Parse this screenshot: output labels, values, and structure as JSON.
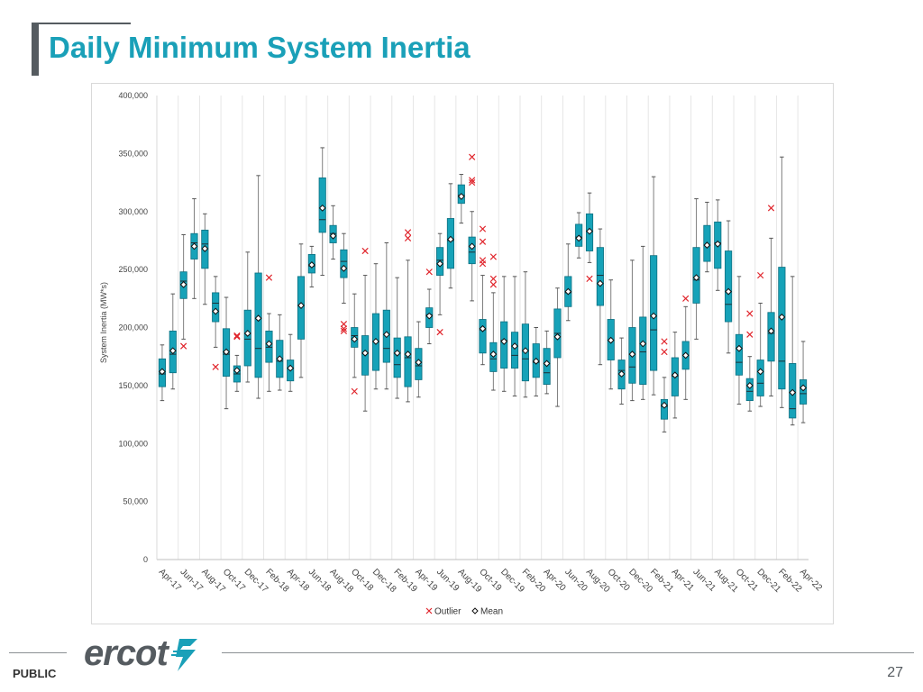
{
  "page": {
    "title": "Daily Minimum System Inertia",
    "classification": "PUBLIC",
    "page_number": "27",
    "logo_text": "ercot",
    "colors": {
      "title": "#1aa0b8",
      "box_fill": "#16a2b8",
      "box_stroke": "#0c6f80",
      "outlier": "#e0242b",
      "dark_gray": "#555b60"
    }
  },
  "chart_data": {
    "type": "box",
    "ylabel": "System Inertia (MW*s)",
    "xlabel": "",
    "ylim": [
      0,
      400000
    ],
    "yticks": [
      0,
      50000,
      100000,
      150000,
      200000,
      250000,
      300000,
      350000,
      400000
    ],
    "ytick_labels": [
      "0",
      "50,000",
      "100,000",
      "150,000",
      "200,000",
      "250,000",
      "300,000",
      "350,000",
      "400,000"
    ],
    "grid": "vertical",
    "legend": {
      "placement": "bottom",
      "entries": [
        "Outlier",
        "Mean"
      ]
    },
    "xtick_labels": [
      "Apr-17",
      "Jun-17",
      "Aug-17",
      "Oct-17",
      "Dec-17",
      "Feb-18",
      "Apr-18",
      "Jun-18",
      "Aug-18",
      "Oct-18",
      "Dec-18",
      "Feb-19",
      "Apr-19",
      "Jun-19",
      "Aug-19",
      "Oct-19",
      "Dec-19",
      "Feb-20",
      "Apr-20",
      "Jun-20",
      "Aug-20",
      "Oct-20",
      "Dec-20",
      "Feb-21",
      "Apr-21",
      "Jun-21",
      "Aug-21",
      "Oct-21",
      "Dec-21",
      "Feb-22",
      "Apr-22"
    ],
    "categories": [
      "Apr-17",
      "May-17",
      "Jun-17",
      "Jul-17",
      "Aug-17",
      "Sep-17",
      "Oct-17",
      "Nov-17",
      "Dec-17",
      "Jan-18",
      "Feb-18",
      "Mar-18",
      "Apr-18",
      "May-18",
      "Jun-18",
      "Jul-18",
      "Aug-18",
      "Sep-18",
      "Oct-18",
      "Nov-18",
      "Dec-18",
      "Jan-19",
      "Feb-19",
      "Mar-19",
      "Apr-19",
      "May-19",
      "Jun-19",
      "Jul-19",
      "Aug-19",
      "Sep-19",
      "Oct-19",
      "Nov-19",
      "Dec-19",
      "Jan-20",
      "Feb-20",
      "Mar-20",
      "Apr-20",
      "May-20",
      "Jun-20",
      "Jul-20",
      "Aug-20",
      "Sep-20",
      "Oct-20",
      "Nov-20",
      "Dec-20",
      "Jan-21",
      "Feb-21",
      "Mar-21",
      "Apr-21",
      "May-21",
      "Jun-21",
      "Jul-21",
      "Aug-21",
      "Sep-21",
      "Oct-21",
      "Nov-21",
      "Dec-21",
      "Jan-22",
      "Feb-22",
      "Mar-22",
      "Apr-22"
    ],
    "boxes": [
      {
        "min": 137000,
        "q1": 149000,
        "median": 160000,
        "q3": 173000,
        "max": 185000,
        "mean": 162000,
        "outliers": []
      },
      {
        "min": 147000,
        "q1": 161000,
        "median": 177000,
        "q3": 197000,
        "max": 229000,
        "mean": 180000,
        "outliers": []
      },
      {
        "min": 190000,
        "q1": 225000,
        "median": 240000,
        "q3": 248000,
        "max": 280000,
        "mean": 237000,
        "outliers": [
          184000
        ]
      },
      {
        "min": 225000,
        "q1": 259000,
        "median": 273000,
        "q3": 281000,
        "max": 311000,
        "mean": 270000,
        "outliers": []
      },
      {
        "min": 220000,
        "q1": 251000,
        "median": 272000,
        "q3": 284000,
        "max": 298000,
        "mean": 268000,
        "outliers": []
      },
      {
        "min": 183000,
        "q1": 205000,
        "median": 221000,
        "q3": 230000,
        "max": 244000,
        "mean": 214000,
        "outliers": [
          166000
        ]
      },
      {
        "min": 130000,
        "q1": 158000,
        "median": 177000,
        "q3": 199000,
        "max": 226000,
        "mean": 179000,
        "outliers": []
      },
      {
        "min": 145000,
        "q1": 153000,
        "median": 160000,
        "q3": 167000,
        "max": 176000,
        "mean": 163000,
        "outliers": [
          192000,
          193000
        ]
      },
      {
        "min": 153000,
        "q1": 167000,
        "median": 190000,
        "q3": 215000,
        "max": 265000,
        "mean": 195000,
        "outliers": []
      },
      {
        "min": 139000,
        "q1": 157000,
        "median": 182000,
        "q3": 247000,
        "max": 331000,
        "mean": 208000,
        "outliers": []
      },
      {
        "min": 145000,
        "q1": 170000,
        "median": 183000,
        "q3": 197000,
        "max": 212000,
        "mean": 186000,
        "outliers": [
          243000
        ]
      },
      {
        "min": 146000,
        "q1": 157000,
        "median": 171000,
        "q3": 189000,
        "max": 211000,
        "mean": 173000,
        "outliers": []
      },
      {
        "min": 145000,
        "q1": 154000,
        "median": 165000,
        "q3": 172000,
        "max": 194000,
        "mean": 165000,
        "outliers": []
      },
      {
        "min": 157000,
        "q1": 190000,
        "median": 219000,
        "q3": 244000,
        "max": 272000,
        "mean": 219000,
        "outliers": []
      },
      {
        "min": 235000,
        "q1": 247000,
        "median": 253000,
        "q3": 263000,
        "max": 270000,
        "mean": 254000,
        "outliers": []
      },
      {
        "min": 245000,
        "q1": 282000,
        "median": 293000,
        "q3": 329000,
        "max": 355000,
        "mean": 303000,
        "outliers": []
      },
      {
        "min": 259000,
        "q1": 273000,
        "median": 281000,
        "q3": 288000,
        "max": 305000,
        "mean": 279000,
        "outliers": []
      },
      {
        "min": 221000,
        "q1": 243000,
        "median": 257000,
        "q3": 267000,
        "max": 281000,
        "mean": 251000,
        "outliers": [
          203000,
          199000,
          197000
        ]
      },
      {
        "min": 157000,
        "q1": 183000,
        "median": 193000,
        "q3": 200000,
        "max": 229000,
        "mean": 190000,
        "outliers": [
          145000
        ]
      },
      {
        "min": 128000,
        "q1": 159000,
        "median": 178000,
        "q3": 193000,
        "max": 245000,
        "mean": 178000,
        "outliers": [
          266000
        ]
      },
      {
        "min": 147000,
        "q1": 163000,
        "median": 188000,
        "q3": 212000,
        "max": 255000,
        "mean": 188000,
        "outliers": []
      },
      {
        "min": 147000,
        "q1": 170000,
        "median": 182000,
        "q3": 215000,
        "max": 273000,
        "mean": 194000,
        "outliers": []
      },
      {
        "min": 139000,
        "q1": 157000,
        "median": 168000,
        "q3": 191000,
        "max": 243000,
        "mean": 178000,
        "outliers": []
      },
      {
        "min": 136000,
        "q1": 149000,
        "median": 174000,
        "q3": 192000,
        "max": 258000,
        "mean": 177000,
        "outliers": [
          282000,
          277000
        ]
      },
      {
        "min": 140000,
        "q1": 155000,
        "median": 167000,
        "q3": 182000,
        "max": 205000,
        "mean": 170000,
        "outliers": []
      },
      {
        "min": 186000,
        "q1": 200000,
        "median": 211000,
        "q3": 217000,
        "max": 233000,
        "mean": 210000,
        "outliers": [
          248000
        ]
      },
      {
        "min": 211000,
        "q1": 245000,
        "median": 258000,
        "q3": 269000,
        "max": 281000,
        "mean": 255000,
        "outliers": [
          196000
        ]
      },
      {
        "min": 234000,
        "q1": 251000,
        "median": 275000,
        "q3": 294000,
        "max": 324000,
        "mean": 276000,
        "outliers": []
      },
      {
        "min": 290000,
        "q1": 307000,
        "median": 314000,
        "q3": 323000,
        "max": 332000,
        "mean": 313000,
        "outliers": []
      },
      {
        "min": 223000,
        "q1": 255000,
        "median": 265000,
        "q3": 278000,
        "max": 300000,
        "mean": 270000,
        "outliers": [
          347000,
          327000,
          325000
        ]
      },
      {
        "min": 168000,
        "q1": 178000,
        "median": 198000,
        "q3": 207000,
        "max": 245000,
        "mean": 199000,
        "outliers": [
          285000,
          274000,
          258000,
          255000
        ]
      },
      {
        "min": 146000,
        "q1": 162000,
        "median": 173000,
        "q3": 187000,
        "max": 230000,
        "mean": 177000,
        "outliers": [
          261000,
          242000,
          237000
        ]
      },
      {
        "min": 145000,
        "q1": 165000,
        "median": 189000,
        "q3": 205000,
        "max": 244000,
        "mean": 188000,
        "outliers": []
      },
      {
        "min": 141000,
        "q1": 165000,
        "median": 176000,
        "q3": 196000,
        "max": 244000,
        "mean": 184000,
        "outliers": []
      },
      {
        "min": 140000,
        "q1": 154000,
        "median": 173000,
        "q3": 203000,
        "max": 248000,
        "mean": 180000,
        "outliers": []
      },
      {
        "min": 141000,
        "q1": 157000,
        "median": 170000,
        "q3": 186000,
        "max": 200000,
        "mean": 171000,
        "outliers": []
      },
      {
        "min": 143000,
        "q1": 151000,
        "median": 161000,
        "q3": 182000,
        "max": 197000,
        "mean": 169000,
        "outliers": []
      },
      {
        "min": 132000,
        "q1": 174000,
        "median": 195000,
        "q3": 216000,
        "max": 234000,
        "mean": 192000,
        "outliers": []
      },
      {
        "min": 206000,
        "q1": 218000,
        "median": 230000,
        "q3": 244000,
        "max": 272000,
        "mean": 231000,
        "outliers": []
      },
      {
        "min": 260000,
        "q1": 270000,
        "median": 278000,
        "q3": 289000,
        "max": 299000,
        "mean": 277000,
        "outliers": []
      },
      {
        "min": 256000,
        "q1": 266000,
        "median": 283000,
        "q3": 298000,
        "max": 316000,
        "mean": 283000,
        "outliers": [
          242000
        ]
      },
      {
        "min": 168000,
        "q1": 219000,
        "median": 245000,
        "q3": 269000,
        "max": 285000,
        "mean": 238000,
        "outliers": []
      },
      {
        "min": 147000,
        "q1": 172000,
        "median": 189000,
        "q3": 207000,
        "max": 241000,
        "mean": 189000,
        "outliers": []
      },
      {
        "min": 134000,
        "q1": 147000,
        "median": 163000,
        "q3": 172000,
        "max": 191000,
        "mean": 160000,
        "outliers": []
      },
      {
        "min": 137000,
        "q1": 152000,
        "median": 166000,
        "q3": 200000,
        "max": 258000,
        "mean": 177000,
        "outliers": []
      },
      {
        "min": 138000,
        "q1": 151000,
        "median": 179000,
        "q3": 209000,
        "max": 270000,
        "mean": 186000,
        "outliers": []
      },
      {
        "min": 142000,
        "q1": 163000,
        "median": 198000,
        "q3": 262000,
        "max": 330000,
        "mean": 210000,
        "outliers": []
      },
      {
        "min": 110000,
        "q1": 121000,
        "median": 132000,
        "q3": 138000,
        "max": 157000,
        "mean": 133000,
        "outliers": [
          188000,
          179000
        ]
      },
      {
        "min": 122000,
        "q1": 141000,
        "median": 158000,
        "q3": 174000,
        "max": 196000,
        "mean": 159000,
        "outliers": []
      },
      {
        "min": 138000,
        "q1": 164000,
        "median": 176000,
        "q3": 188000,
        "max": 218000,
        "mean": 176000,
        "outliers": [
          225000
        ]
      },
      {
        "min": 190000,
        "q1": 221000,
        "median": 241000,
        "q3": 269000,
        "max": 311000,
        "mean": 243000,
        "outliers": []
      },
      {
        "min": 248000,
        "q1": 257000,
        "median": 271000,
        "q3": 288000,
        "max": 308000,
        "mean": 271000,
        "outliers": []
      },
      {
        "min": 232000,
        "q1": 251000,
        "median": 273000,
        "q3": 291000,
        "max": 310000,
        "mean": 272000,
        "outliers": []
      },
      {
        "min": 178000,
        "q1": 205000,
        "median": 220000,
        "q3": 266000,
        "max": 292000,
        "mean": 231000,
        "outliers": []
      },
      {
        "min": 134000,
        "q1": 159000,
        "median": 170000,
        "q3": 194000,
        "max": 244000,
        "mean": 182000,
        "outliers": []
      },
      {
        "min": 128000,
        "q1": 137000,
        "median": 145000,
        "q3": 156000,
        "max": 175000,
        "mean": 150000,
        "outliers": [
          212000,
          194000
        ]
      },
      {
        "min": 132000,
        "q1": 141000,
        "median": 152000,
        "q3": 172000,
        "max": 221000,
        "mean": 162000,
        "outliers": [
          245000
        ]
      },
      {
        "min": 141000,
        "q1": 171000,
        "median": 195000,
        "q3": 213000,
        "max": 277000,
        "mean": 197000,
        "outliers": [
          303000
        ]
      },
      {
        "min": 131000,
        "q1": 147000,
        "median": 171000,
        "q3": 252000,
        "max": 347000,
        "mean": 209000,
        "outliers": []
      },
      {
        "min": 116000,
        "q1": 122000,
        "median": 130000,
        "q3": 169000,
        "max": 244000,
        "mean": 144000,
        "outliers": []
      },
      {
        "min": 118000,
        "q1": 134000,
        "median": 143000,
        "q3": 155000,
        "max": 188000,
        "mean": 148000,
        "outliers": []
      }
    ]
  }
}
